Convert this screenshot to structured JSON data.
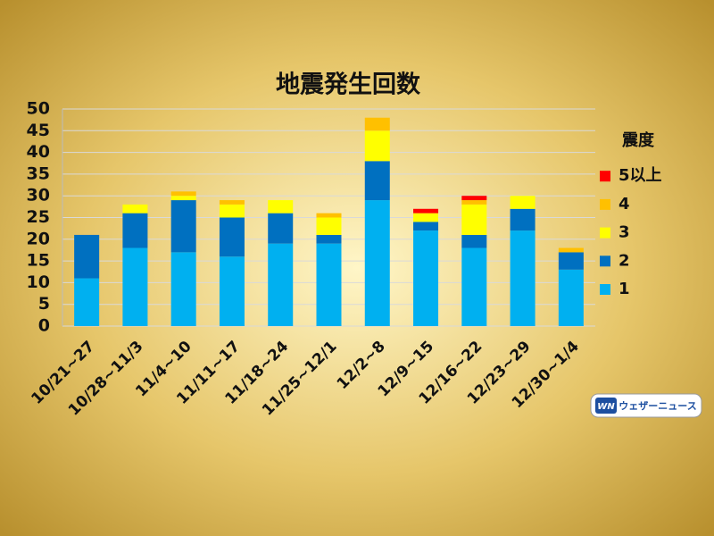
{
  "chart_data": {
    "type": "stacked_bar",
    "title": "地震発生回数",
    "categories": [
      "10/21~27",
      "10/28~11/3",
      "11/4~10",
      "11/11~17",
      "11/18~24",
      "11/25~12/1",
      "12/2~8",
      "12/9~15",
      "12/16~22",
      "12/23~29",
      "12/30~1/4"
    ],
    "legend_title": "震度",
    "series": [
      {
        "name": "1",
        "color": "#00b0f0",
        "values": [
          11,
          18,
          17,
          16,
          19,
          19,
          29,
          22,
          18,
          22,
          13
        ]
      },
      {
        "name": "2",
        "color": "#0070c0",
        "values": [
          10,
          8,
          12,
          9,
          7,
          2,
          9,
          2,
          3,
          5,
          4
        ]
      },
      {
        "name": "3",
        "color": "#ffff00",
        "values": [
          0,
          2,
          1,
          3,
          3,
          4,
          7,
          2,
          7,
          3,
          0
        ]
      },
      {
        "name": "4",
        "color": "#ffc000",
        "values": [
          0,
          0,
          1,
          1,
          0,
          1,
          3,
          0,
          1,
          0,
          1
        ]
      },
      {
        "name": "5以上",
        "color": "#ff0000",
        "values": [
          0,
          0,
          0,
          0,
          0,
          0,
          0,
          1,
          1,
          0,
          0
        ]
      }
    ],
    "ylim": [
      0,
      50
    ],
    "yticks": [
      0,
      5,
      10,
      15,
      20,
      25,
      30,
      35,
      40,
      45,
      50
    ],
    "grid": true,
    "logo": {
      "mark": "WN",
      "text": "ウェザーニュース"
    }
  }
}
